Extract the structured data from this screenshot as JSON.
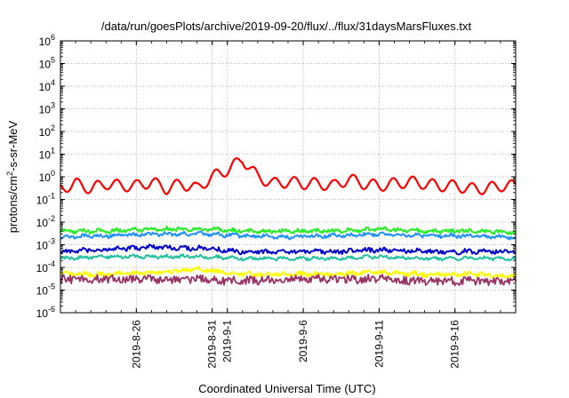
{
  "chart_data": {
    "type": "line",
    "title": "/data/run/goesPlots/archive/2019-09-20/flux/../flux/31daysMarsFluxes.txt",
    "xlabel": "Coordinated Universal Time (UTC)",
    "ylabel": "protons/cm2-s-sr-MeV",
    "ylabel_parts": {
      "base": "protons/cm",
      "sup": "2",
      "rest": "-s-sr-MeV"
    },
    "y_scale": "log",
    "ylim": [
      1e-06,
      1000000.0
    ],
    "y_ticks": [
      {
        "base": "10",
        "exp": "-6"
      },
      {
        "base": "10",
        "exp": "-5"
      },
      {
        "base": "10",
        "exp": "-4"
      },
      {
        "base": "10",
        "exp": "-3"
      },
      {
        "base": "10",
        "exp": "-2"
      },
      {
        "base": "10",
        "exp": "-1"
      },
      {
        "base": "10",
        "exp": "0"
      },
      {
        "base": "10",
        "exp": "1"
      },
      {
        "base": "10",
        "exp": "2"
      },
      {
        "base": "10",
        "exp": "3"
      },
      {
        "base": "10",
        "exp": "4"
      },
      {
        "base": "10",
        "exp": "5"
      },
      {
        "base": "10",
        "exp": "6"
      }
    ],
    "xlim": [
      "2019-08-21",
      "2019-09-20"
    ],
    "x_ticks": [
      "2019-8-26",
      "2019-8-31",
      "2019-9-1",
      "2019-9-6",
      "2019-9-11",
      "2019-9-16"
    ],
    "grid": true,
    "series": [
      {
        "color": "#ff0000",
        "values": [
          [
            "2019-08-21",
            0.3
          ],
          [
            "2019-08-22",
            0.5
          ],
          [
            "2019-08-23",
            0.3
          ],
          [
            "2019-08-24",
            0.5
          ],
          [
            "2019-08-25",
            0.4
          ],
          [
            "2019-08-26",
            0.4
          ],
          [
            "2019-08-27",
            0.6
          ],
          [
            "2019-08-28",
            0.3
          ],
          [
            "2019-08-29",
            0.5
          ],
          [
            "2019-08-30",
            0.3
          ],
          [
            "2019-08-31",
            1.0
          ],
          [
            "2019-09-01",
            2.0
          ],
          [
            "2019-09-02",
            6.0
          ],
          [
            "2019-09-03",
            1.0
          ],
          [
            "2019-09-04",
            0.5
          ],
          [
            "2019-09-05",
            0.6
          ],
          [
            "2019-09-06",
            0.5
          ],
          [
            "2019-09-07",
            0.5
          ],
          [
            "2019-09-08",
            0.4
          ],
          [
            "2019-09-09",
            0.8
          ],
          [
            "2019-09-10",
            0.5
          ],
          [
            "2019-09-11",
            0.4
          ],
          [
            "2019-09-12",
            0.5
          ],
          [
            "2019-09-13",
            0.6
          ],
          [
            "2019-09-14",
            0.5
          ],
          [
            "2019-09-15",
            0.4
          ],
          [
            "2019-09-16",
            0.4
          ],
          [
            "2019-09-17",
            0.3
          ],
          [
            "2019-09-18",
            0.3
          ],
          [
            "2019-09-19",
            0.4
          ],
          [
            "2019-09-20",
            0.4
          ]
        ]
      },
      {
        "color": "#22ee22",
        "values": [
          [
            "2019-08-21",
            0.004
          ],
          [
            "2019-08-24",
            0.004
          ],
          [
            "2019-08-27",
            0.005
          ],
          [
            "2019-08-30",
            0.005
          ],
          [
            "2019-09-02",
            0.004
          ],
          [
            "2019-09-05",
            0.004
          ],
          [
            "2019-09-08",
            0.004
          ],
          [
            "2019-09-11",
            0.005
          ],
          [
            "2019-09-14",
            0.004
          ],
          [
            "2019-09-17",
            0.004
          ],
          [
            "2019-09-20",
            0.0035
          ]
        ]
      },
      {
        "color": "#1e90ff",
        "values": [
          [
            "2019-08-21",
            0.0022
          ],
          [
            "2019-08-24",
            0.0025
          ],
          [
            "2019-08-27",
            0.003
          ],
          [
            "2019-08-30",
            0.003
          ],
          [
            "2019-09-02",
            0.0025
          ],
          [
            "2019-09-05",
            0.0022
          ],
          [
            "2019-09-08",
            0.0025
          ],
          [
            "2019-09-11",
            0.003
          ],
          [
            "2019-09-14",
            0.0025
          ],
          [
            "2019-09-17",
            0.0025
          ],
          [
            "2019-09-20",
            0.002
          ]
        ]
      },
      {
        "color": "#0000cc",
        "values": [
          [
            "2019-08-21",
            0.0005
          ],
          [
            "2019-08-24",
            0.0006
          ],
          [
            "2019-08-27",
            0.0008
          ],
          [
            "2019-08-30",
            0.0007
          ],
          [
            "2019-09-02",
            0.0005
          ],
          [
            "2019-09-05",
            0.0005
          ],
          [
            "2019-09-08",
            0.0005
          ],
          [
            "2019-09-11",
            0.0006
          ],
          [
            "2019-09-14",
            0.0005
          ],
          [
            "2019-09-17",
            0.0005
          ],
          [
            "2019-09-20",
            0.0005
          ]
        ]
      },
      {
        "color": "#20c0a0",
        "values": [
          [
            "2019-08-21",
            0.00025
          ],
          [
            "2019-08-24",
            0.0003
          ],
          [
            "2019-08-27",
            0.0003
          ],
          [
            "2019-08-30",
            0.0003
          ],
          [
            "2019-09-02",
            0.00025
          ],
          [
            "2019-09-05",
            0.00025
          ],
          [
            "2019-09-08",
            0.00025
          ],
          [
            "2019-09-11",
            0.0003
          ],
          [
            "2019-09-14",
            0.00025
          ],
          [
            "2019-09-17",
            0.00025
          ],
          [
            "2019-09-20",
            0.00025
          ]
        ]
      },
      {
        "color": "#ffff00",
        "values": [
          [
            "2019-08-21",
            5e-05
          ],
          [
            "2019-08-24",
            5e-05
          ],
          [
            "2019-08-27",
            6e-05
          ],
          [
            "2019-08-30",
            8e-05
          ],
          [
            "2019-09-02",
            5e-05
          ],
          [
            "2019-09-05",
            5e-05
          ],
          [
            "2019-09-08",
            5e-05
          ],
          [
            "2019-09-11",
            6e-05
          ],
          [
            "2019-09-14",
            5e-05
          ],
          [
            "2019-09-17",
            5e-05
          ],
          [
            "2019-09-20",
            4e-05
          ]
        ]
      },
      {
        "color": "#993366",
        "values": [
          [
            "2019-08-21",
            3e-05
          ],
          [
            "2019-08-24",
            3e-05
          ],
          [
            "2019-08-27",
            3e-05
          ],
          [
            "2019-08-30",
            3e-05
          ],
          [
            "2019-09-02",
            2.5e-05
          ],
          [
            "2019-09-05",
            3e-05
          ],
          [
            "2019-09-08",
            3e-05
          ],
          [
            "2019-09-11",
            3e-05
          ],
          [
            "2019-09-14",
            2.5e-05
          ],
          [
            "2019-09-17",
            2.5e-05
          ],
          [
            "2019-09-20",
            2.5e-05
          ]
        ]
      }
    ]
  }
}
